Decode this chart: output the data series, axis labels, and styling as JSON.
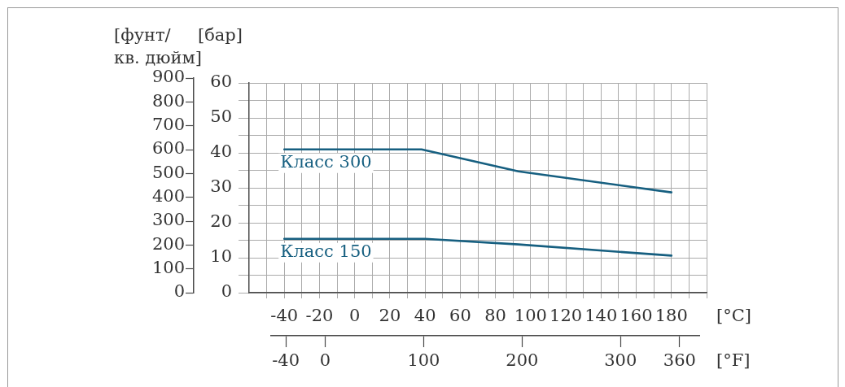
{
  "chart_data": {
    "type": "line",
    "xlabel": "[°C]",
    "x2label": "[°F]",
    "ylabel": "[бар]",
    "y2label": "[фунт/ кв. дюйм]",
    "xlim": [
      -60,
      200
    ],
    "xticks": [
      {
        "value": -50,
        "label": null
      },
      -40,
      {
        "value": -30,
        "label": null
      },
      -20,
      {
        "value": -10,
        "label": null
      },
      0,
      {
        "value": 10,
        "label": null
      },
      20,
      {
        "value": 30,
        "label": null
      },
      40,
      {
        "value": 50,
        "label": null
      },
      60,
      {
        "value": 70,
        "label": null
      },
      80,
      {
        "value": 90,
        "label": null
      },
      100,
      {
        "value": 110,
        "label": null
      },
      120,
      {
        "value": 130,
        "label": null
      },
      140,
      {
        "value": 150,
        "label": null
      },
      160,
      {
        "value": 170,
        "label": null
      },
      180,
      {
        "value": 190,
        "label": null
      },
      {
        "value": 200,
        "label": null
      }
    ],
    "x2lim": [
      -55,
      380
    ],
    "x2ticks": [
      -40,
      0,
      100,
      200,
      300,
      360
    ],
    "ylim": [
      0,
      60
    ],
    "yticks": [
      0,
      {
        "value": 5,
        "label": null
      },
      10,
      {
        "value": 15,
        "label": null
      },
      20,
      {
        "value": 25,
        "label": null
      },
      30,
      {
        "value": 35,
        "label": null
      },
      40,
      {
        "value": 45,
        "label": null
      },
      50,
      {
        "value": 55,
        "label": null
      },
      60
    ],
    "y2lim": [
      0,
      900
    ],
    "y2ticks": [
      0,
      100,
      200,
      300,
      400,
      500,
      600,
      700,
      800,
      900
    ],
    "grid": true,
    "marker": "none",
    "series": [
      {
        "name": "Класс 300",
        "color": "#165f80",
        "x": [
          -40,
          38,
          93,
          180
        ],
        "values": [
          41,
          41,
          34.7,
          28.7
        ]
      },
      {
        "name": "Класс 150",
        "color": "#165f80",
        "x": [
          -40,
          40,
          93,
          180
        ],
        "values": [
          15.4,
          15.4,
          13.8,
          10.6
        ]
      }
    ]
  }
}
